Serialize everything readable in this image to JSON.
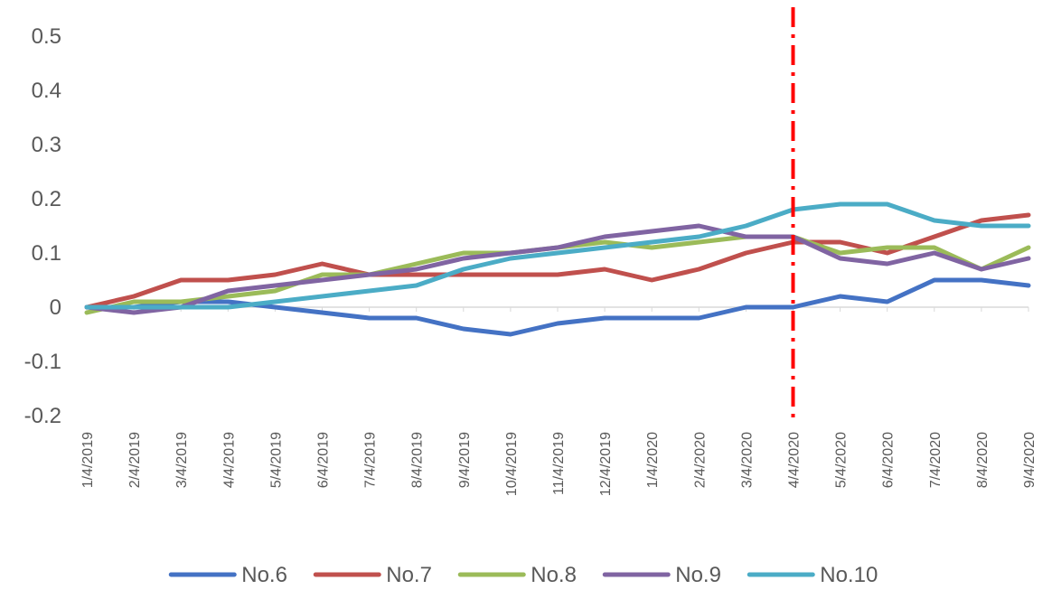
{
  "chart_data": {
    "type": "line",
    "title": "",
    "xlabel": "",
    "ylabel": "",
    "ylim": [
      -0.2,
      0.5
    ],
    "y_ticks": [
      "0.5",
      "0.4",
      "0.3",
      "0.2",
      "0.1",
      "0",
      "-0.1",
      "-0.2"
    ],
    "grid": false,
    "legend_position": "bottom",
    "x_ticks": [
      "1/4/2019",
      "2/4/2019",
      "3/4/2019",
      "4/4/2019",
      "5/4/2019",
      "6/4/2019",
      "7/4/2019",
      "8/4/2019",
      "9/4/2019",
      "10/4/2019",
      "11/4/2019",
      "12/4/2019",
      "1/4/2020",
      "2/4/2020",
      "3/4/2020",
      "4/4/2020",
      "5/4/2020",
      "6/4/2020",
      "7/4/2020",
      "8/4/2020",
      "9/4/2020"
    ],
    "x": [
      "1/4/2019",
      "2/4/2019",
      "3/4/2019",
      "4/4/2019",
      "5/4/2019",
      "6/4/2019",
      "7/4/2019",
      "8/4/2019",
      "9/4/2019",
      "10/4/2019",
      "11/4/2019",
      "12/4/2019",
      "1/4/2020",
      "2/4/2020",
      "3/4/2020",
      "4/4/2020",
      "5/4/2020",
      "6/4/2020",
      "7/4/2020",
      "8/4/2020",
      "9/4/2020"
    ],
    "vertical_marker": {
      "x": "4/4/2020",
      "color": "#FF0000",
      "style": "dash-dot"
    },
    "series": [
      {
        "name": "No.6",
        "color": "#4472C4",
        "values": [
          0.0,
          0.0,
          0.01,
          0.01,
          0.0,
          -0.01,
          -0.02,
          -0.02,
          -0.04,
          -0.05,
          -0.03,
          -0.02,
          -0.02,
          -0.02,
          0.0,
          0.0,
          0.02,
          0.01,
          0.05,
          0.05,
          0.04
        ]
      },
      {
        "name": "No.7",
        "color": "#C0504D",
        "values": [
          0.0,
          0.02,
          0.05,
          0.05,
          0.06,
          0.08,
          0.06,
          0.06,
          0.06,
          0.06,
          0.06,
          0.07,
          0.05,
          0.07,
          0.1,
          0.12,
          0.12,
          0.1,
          0.13,
          0.16,
          0.17
        ]
      },
      {
        "name": "No.8",
        "color": "#9BBB59",
        "values": [
          -0.01,
          0.01,
          0.01,
          0.02,
          0.03,
          0.06,
          0.06,
          0.08,
          0.1,
          0.1,
          0.11,
          0.12,
          0.11,
          0.12,
          0.13,
          0.13,
          0.1,
          0.11,
          0.11,
          0.07,
          0.11
        ]
      },
      {
        "name": "No.9",
        "color": "#8064A2",
        "values": [
          0.0,
          -0.01,
          0.0,
          0.03,
          0.04,
          0.05,
          0.06,
          0.07,
          0.09,
          0.1,
          0.11,
          0.13,
          0.14,
          0.15,
          0.13,
          0.13,
          0.09,
          0.08,
          0.1,
          0.07,
          0.09
        ]
      },
      {
        "name": "No.10",
        "color": "#4BACC6",
        "values": [
          0.0,
          0.0,
          0.0,
          0.0,
          0.01,
          0.02,
          0.03,
          0.04,
          0.07,
          0.09,
          0.1,
          0.11,
          0.12,
          0.13,
          0.15,
          0.18,
          0.19,
          0.19,
          0.16,
          0.15,
          0.15
        ]
      }
    ]
  }
}
